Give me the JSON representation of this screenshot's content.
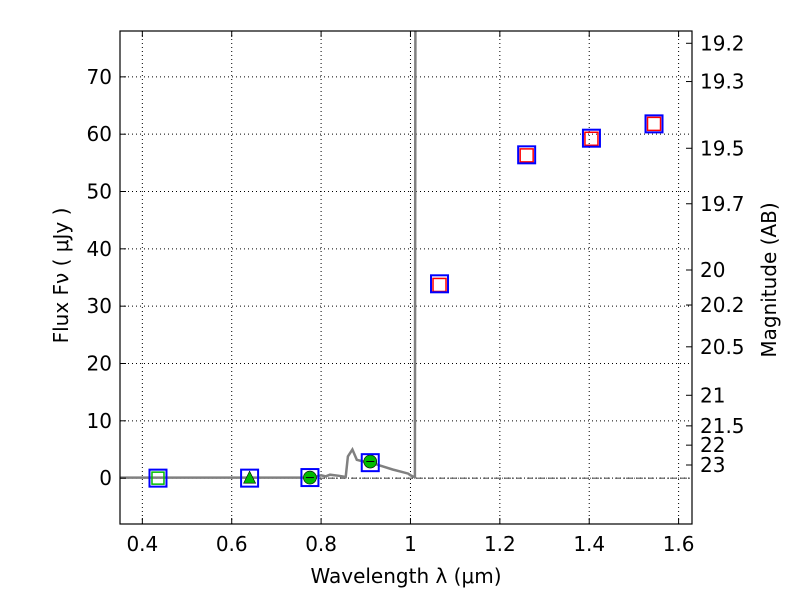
{
  "chart_data": {
    "type": "scatter",
    "xlabel": "Wavelength  λ (μm)",
    "ylabel": "Flux  Fν  ( μJy )",
    "y2label": "Magnitude (AB)",
    "xlim": [
      0.35,
      1.63
    ],
    "ylim": [
      -8,
      78
    ],
    "grid": true,
    "x_ticks": [
      0.4,
      0.6,
      0.8,
      1.0,
      1.2,
      1.4,
      1.6
    ],
    "x_tick_labels": [
      "0.4",
      "0.6",
      "0.8",
      "1",
      "1.2",
      "1.4",
      "1.6"
    ],
    "y_ticks": [
      0,
      10,
      20,
      30,
      40,
      50,
      60,
      70
    ],
    "y_tick_labels": [
      "0",
      "10",
      "20",
      "30",
      "40",
      "50",
      "60",
      "70"
    ],
    "right_axis": {
      "labels": [
        "19.2",
        "19.3",
        "19.5",
        "19.7",
        "20",
        "20.2",
        "20.5",
        "21",
        "21.5",
        "22",
        "23"
      ],
      "magnitudes": [
        19.2,
        19.3,
        19.5,
        19.7,
        20.0,
        20.2,
        20.5,
        21.0,
        21.5,
        22.0,
        23.0
      ]
    },
    "colors": {
      "frame": "#000000",
      "grid": "#000000",
      "model_line": "#808080",
      "observed_marker": "#0000ff",
      "model_marker": "#ff0000",
      "detection_marker": "#00bb00",
      "zero_line": "#000000"
    },
    "series": [
      {
        "kind": "model_sed_line",
        "x": [
          0.35,
          0.78,
          0.79,
          0.8,
          0.81,
          0.82,
          0.84,
          0.855,
          0.86,
          0.87,
          0.88,
          0.9,
          0.92,
          0.94,
          0.96,
          0.98,
          0.995,
          1.0,
          1.005,
          1.01,
          1.011
        ],
        "y": [
          0.1,
          0.1,
          0.3,
          0.5,
          0.3,
          0.6,
          0.4,
          0.2,
          3.8,
          5.0,
          3.2,
          2.8,
          2.5,
          2.0,
          1.5,
          1.1,
          0.8,
          0.5,
          0.3,
          0.2,
          78
        ]
      },
      {
        "kind": "observed_blue_squares",
        "x": [
          0.435,
          0.64,
          0.775,
          0.91,
          1.065,
          1.26,
          1.405,
          1.545
        ],
        "y": [
          0.0,
          0.0,
          0.1,
          2.7,
          33.9,
          56.4,
          59.3,
          61.8
        ]
      },
      {
        "kind": "model_red_squares",
        "x": [
          1.065,
          1.26,
          1.405,
          1.545
        ],
        "y": [
          33.7,
          56.3,
          59.2,
          61.8
        ]
      },
      {
        "kind": "green_circles",
        "x": [
          0.775,
          0.91
        ],
        "y": [
          0.1,
          2.9
        ]
      },
      {
        "kind": "green_triangle",
        "x": [
          0.64
        ],
        "y": [
          0.0
        ]
      },
      {
        "kind": "green_open_square",
        "x": [
          0.435
        ],
        "y": [
          0.0
        ]
      }
    ]
  }
}
